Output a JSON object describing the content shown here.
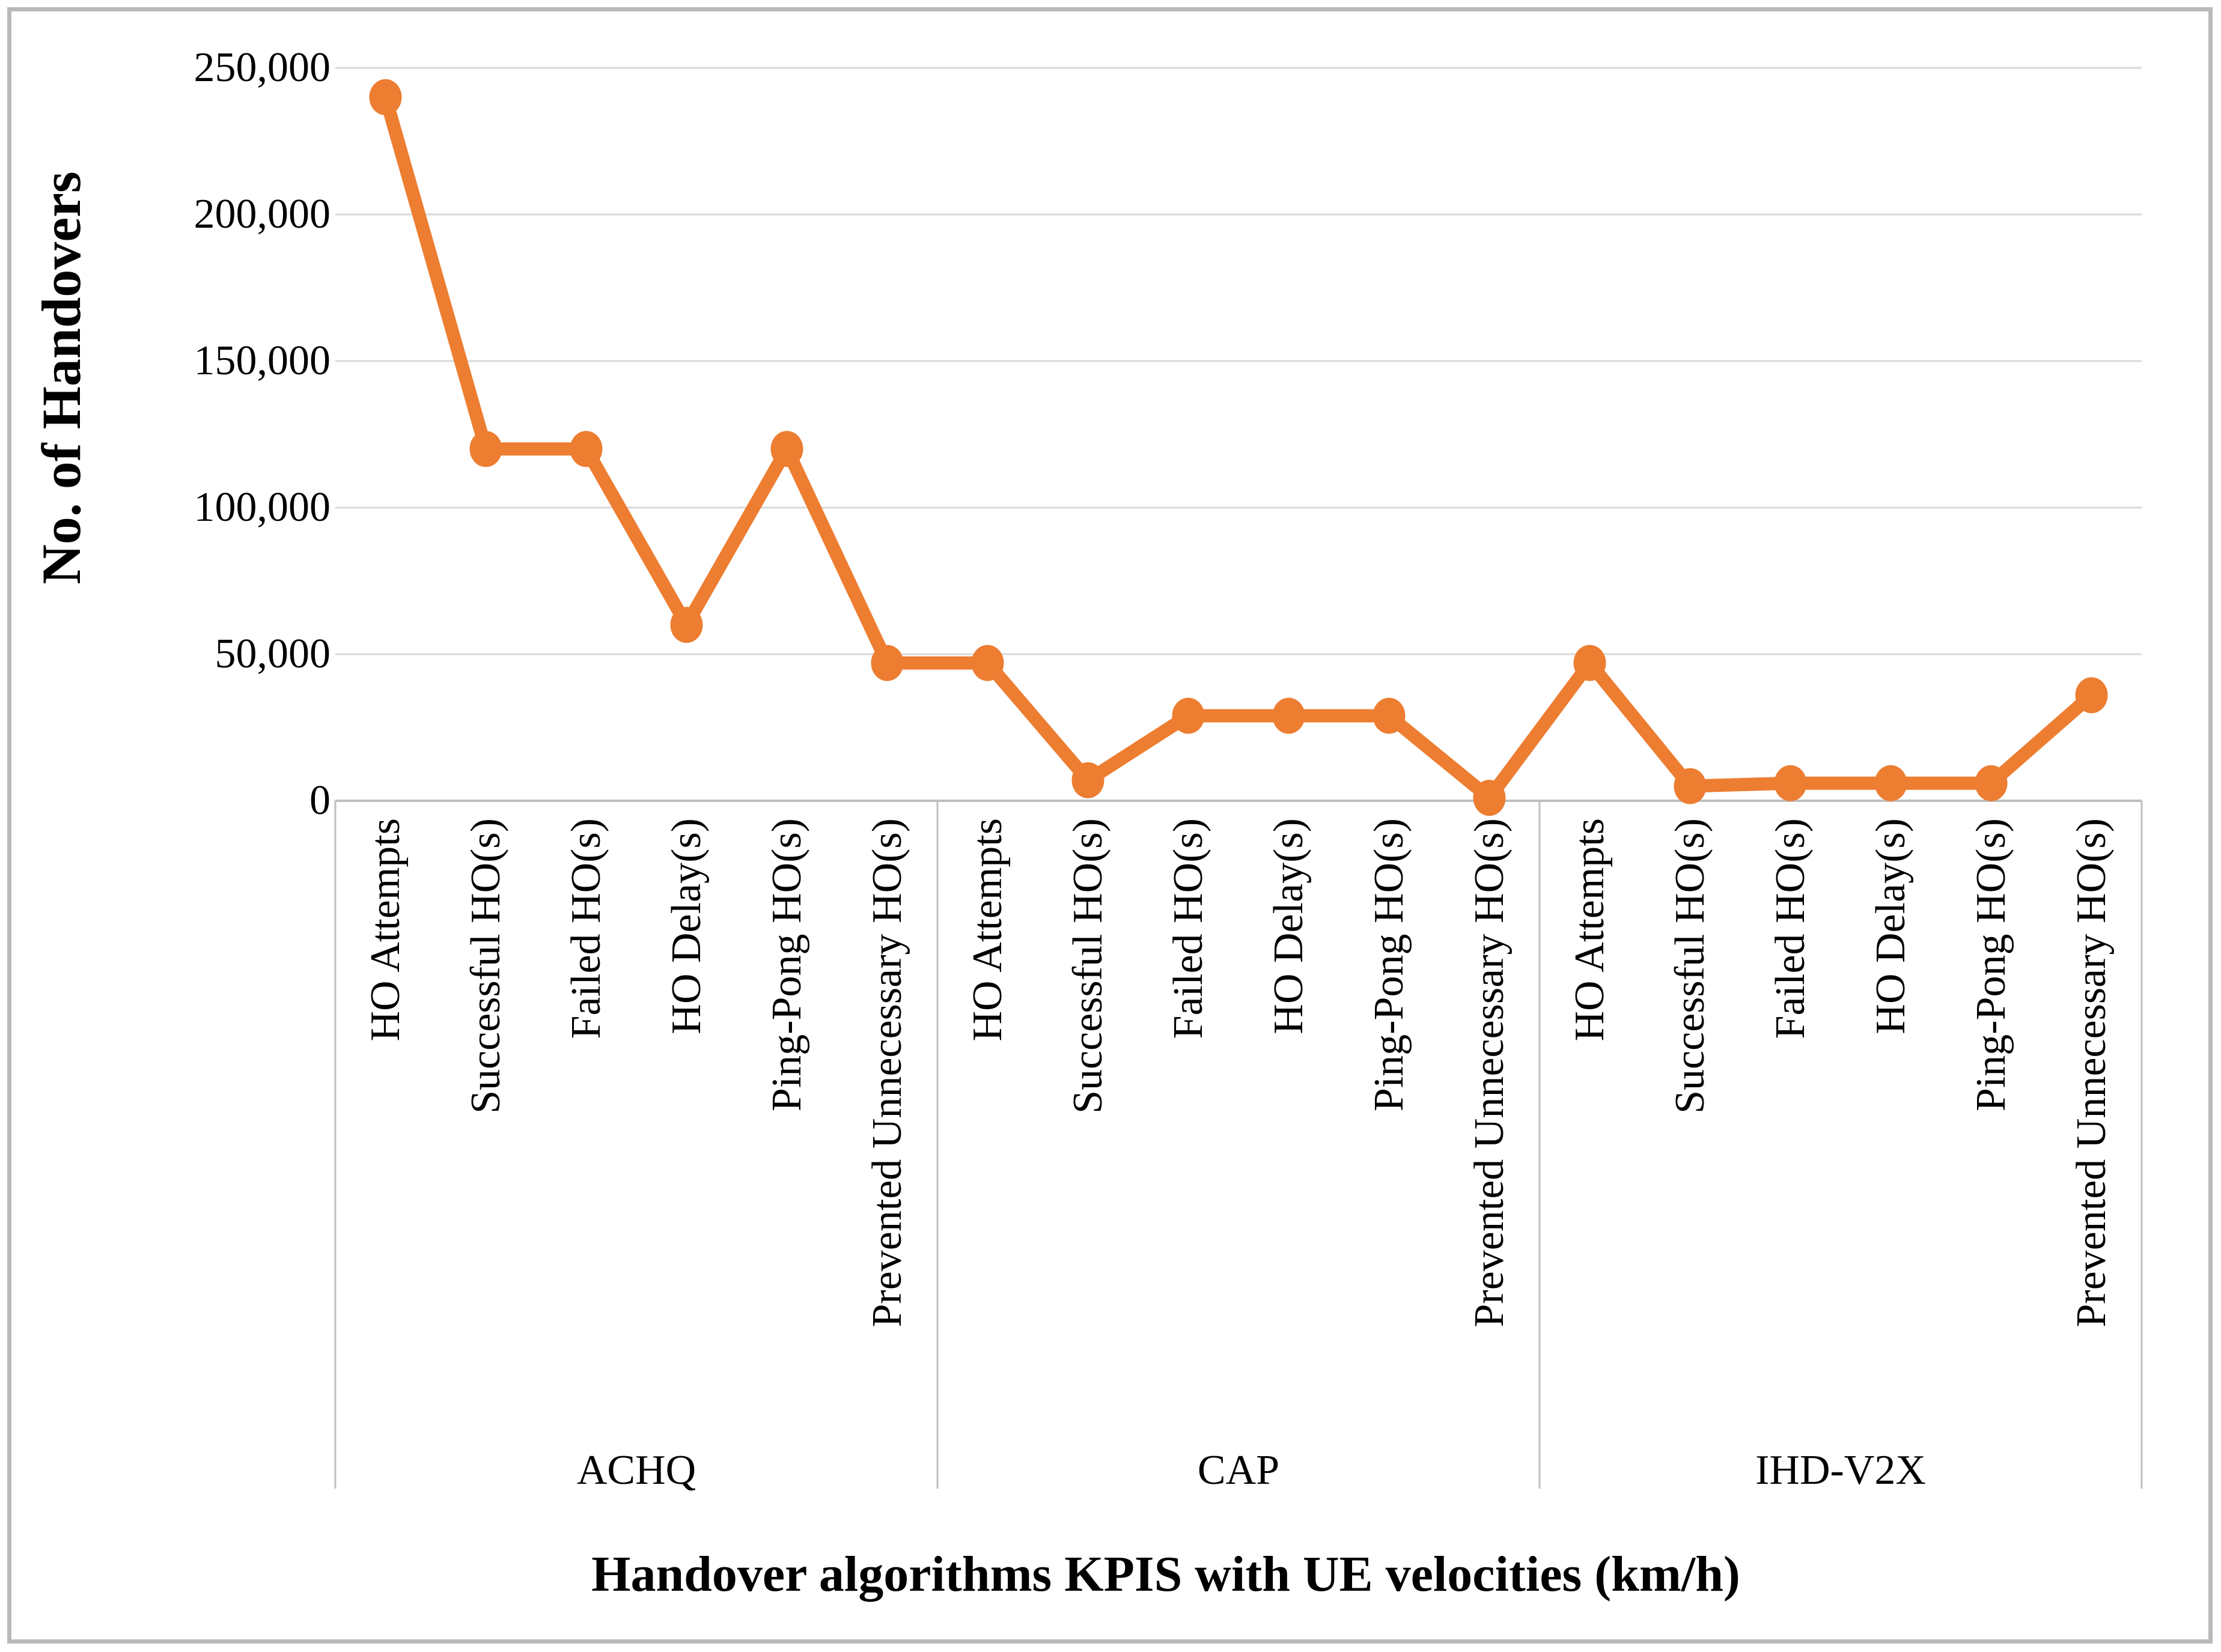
{
  "chart_data": {
    "type": "line",
    "title": "",
    "xlabel": "Handover algorithms  KPIS with UE velocities (km/h)",
    "ylabel": "No. of Handovers",
    "ylim": [
      0,
      250000
    ],
    "grid": true,
    "legend": "none",
    "series_color": "#ED7D31",
    "gridline_color": "#D9D9D9",
    "axis_line_color": "#BFBFBF",
    "y_tick_labels": [
      "250,000",
      "200,000",
      "150,000",
      "100,000",
      "50,000",
      "0"
    ],
    "y_tick_values": [
      250000,
      200000,
      150000,
      100000,
      50000,
      0
    ],
    "kpi_categories": [
      "HO Attempts",
      "Successful HO(s)",
      "Failed HO(s)",
      "HO Delay(s)",
      "Ping-Pong HO(s)",
      "Prevented Unnecessary HO(s)"
    ],
    "groups": [
      {
        "name": "ACHQ",
        "values": [
          240000,
          120000,
          120000,
          60000,
          120000,
          47000
        ]
      },
      {
        "name": "CAP",
        "values": [
          47000,
          7000,
          29000,
          29000,
          29000,
          1000
        ]
      },
      {
        "name": "IHD-V2X",
        "values": [
          47000,
          5000,
          6000,
          6000,
          6000,
          36000
        ]
      }
    ]
  }
}
